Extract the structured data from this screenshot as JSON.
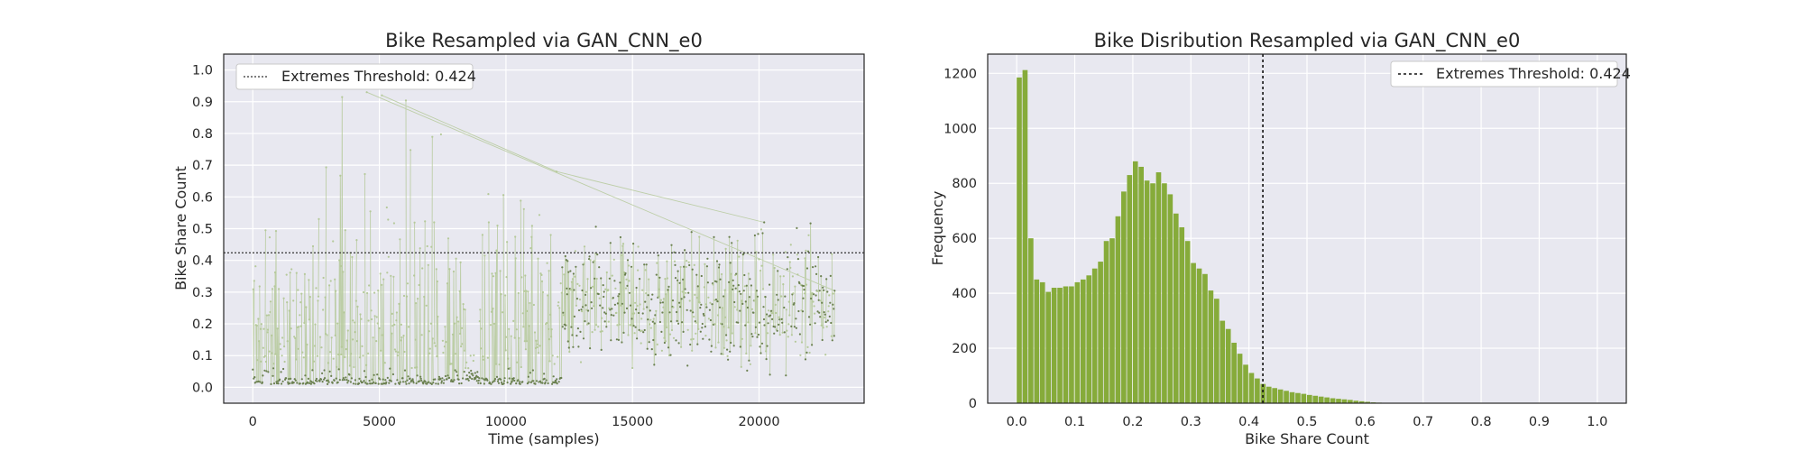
{
  "colors": {
    "axes_bg": "#e8e8f0",
    "grid": "#ffffff",
    "scatter_light": "#b5c99a",
    "scatter_dark": "#6b8050",
    "histogram_bar": "#86ab3a",
    "threshold_line": "#333333",
    "text": "#262626"
  },
  "chart_data": [
    {
      "type": "scatter",
      "title": "Bike Resampled via GAN_CNN_e0",
      "xlabel": "Time (samples)",
      "ylabel": "Bike Share Count",
      "xlim": [
        -1150,
        24150
      ],
      "ylim": [
        -0.05,
        1.05
      ],
      "xticks": [
        0,
        5000,
        10000,
        15000,
        20000
      ],
      "xtick_labels": [
        "0",
        "5000",
        "10000",
        "15000",
        "20000"
      ],
      "yticks": [
        0.0,
        0.1,
        0.2,
        0.3,
        0.4,
        0.5,
        0.6,
        0.7,
        0.8,
        0.9,
        1.0
      ],
      "ytick_labels": [
        "0.0",
        "0.1",
        "0.2",
        "0.3",
        "0.4",
        "0.5",
        "0.6",
        "0.7",
        "0.8",
        "0.9",
        "1.0"
      ],
      "grid": true,
      "threshold": 0.424,
      "legend": {
        "label": "Extremes Threshold: 0.424",
        "position": "top-left"
      },
      "n_samples": 23000,
      "segments": [
        {
          "x_start": 0,
          "x_end": 2200,
          "low": 0.01,
          "typical_max": 0.45,
          "peak": 0.52
        },
        {
          "x_start": 2200,
          "x_end": 8400,
          "low": 0.01,
          "typical_max": 0.55,
          "peak": 0.93
        },
        {
          "x_start": 8400,
          "x_end": 8900,
          "low": 0.02,
          "typical_max": 0.1,
          "peak": 0.15
        },
        {
          "x_start": 8900,
          "x_end": 12200,
          "low": 0.01,
          "typical_max": 0.55,
          "peak": 0.68
        },
        {
          "x_start": 12200,
          "x_end": 23000,
          "low": 0.08,
          "typical_max": 0.4,
          "peak": 0.52
        }
      ],
      "notable_peaks": [
        {
          "x": 4500,
          "y": 0.93
        },
        {
          "x": 5100,
          "y": 0.92
        },
        {
          "x": 12000,
          "y": 0.68
        },
        {
          "x": 20200,
          "y": 0.52
        }
      ]
    },
    {
      "type": "bar",
      "title": "Bike Disribution Resampled via GAN_CNN_e0",
      "xlabel": "Bike Share Count",
      "ylabel": "Frequency",
      "xlim": [
        -0.05,
        1.05
      ],
      "ylim": [
        0,
        1270
      ],
      "xticks": [
        0.0,
        0.1,
        0.2,
        0.3,
        0.4,
        0.5,
        0.6,
        0.7,
        0.8,
        0.9,
        1.0
      ],
      "xtick_labels": [
        "0.0",
        "0.1",
        "0.2",
        "0.3",
        "0.4",
        "0.5",
        "0.6",
        "0.7",
        "0.8",
        "0.9",
        "1.0"
      ],
      "yticks": [
        0,
        200,
        400,
        600,
        800,
        1000,
        1200
      ],
      "ytick_labels": [
        "0",
        "200",
        "400",
        "600",
        "800",
        "1000",
        "1200"
      ],
      "grid": true,
      "threshold": 0.424,
      "legend": {
        "label": "Extremes Threshold: 0.424",
        "position": "top-right"
      },
      "bin_start": 0.0,
      "bin_width": 0.01,
      "values": [
        1185,
        1212,
        600,
        450,
        440,
        405,
        420,
        420,
        425,
        425,
        440,
        450,
        465,
        490,
        515,
        590,
        600,
        680,
        770,
        830,
        880,
        860,
        810,
        800,
        840,
        800,
        760,
        690,
        640,
        590,
        510,
        490,
        470,
        410,
        380,
        300,
        270,
        220,
        180,
        140,
        110,
        90,
        70,
        60,
        55,
        50,
        45,
        40,
        37,
        34,
        30,
        27,
        24,
        21,
        18,
        16,
        14,
        12,
        9,
        7,
        5,
        3,
        2,
        1
      ]
    }
  ]
}
